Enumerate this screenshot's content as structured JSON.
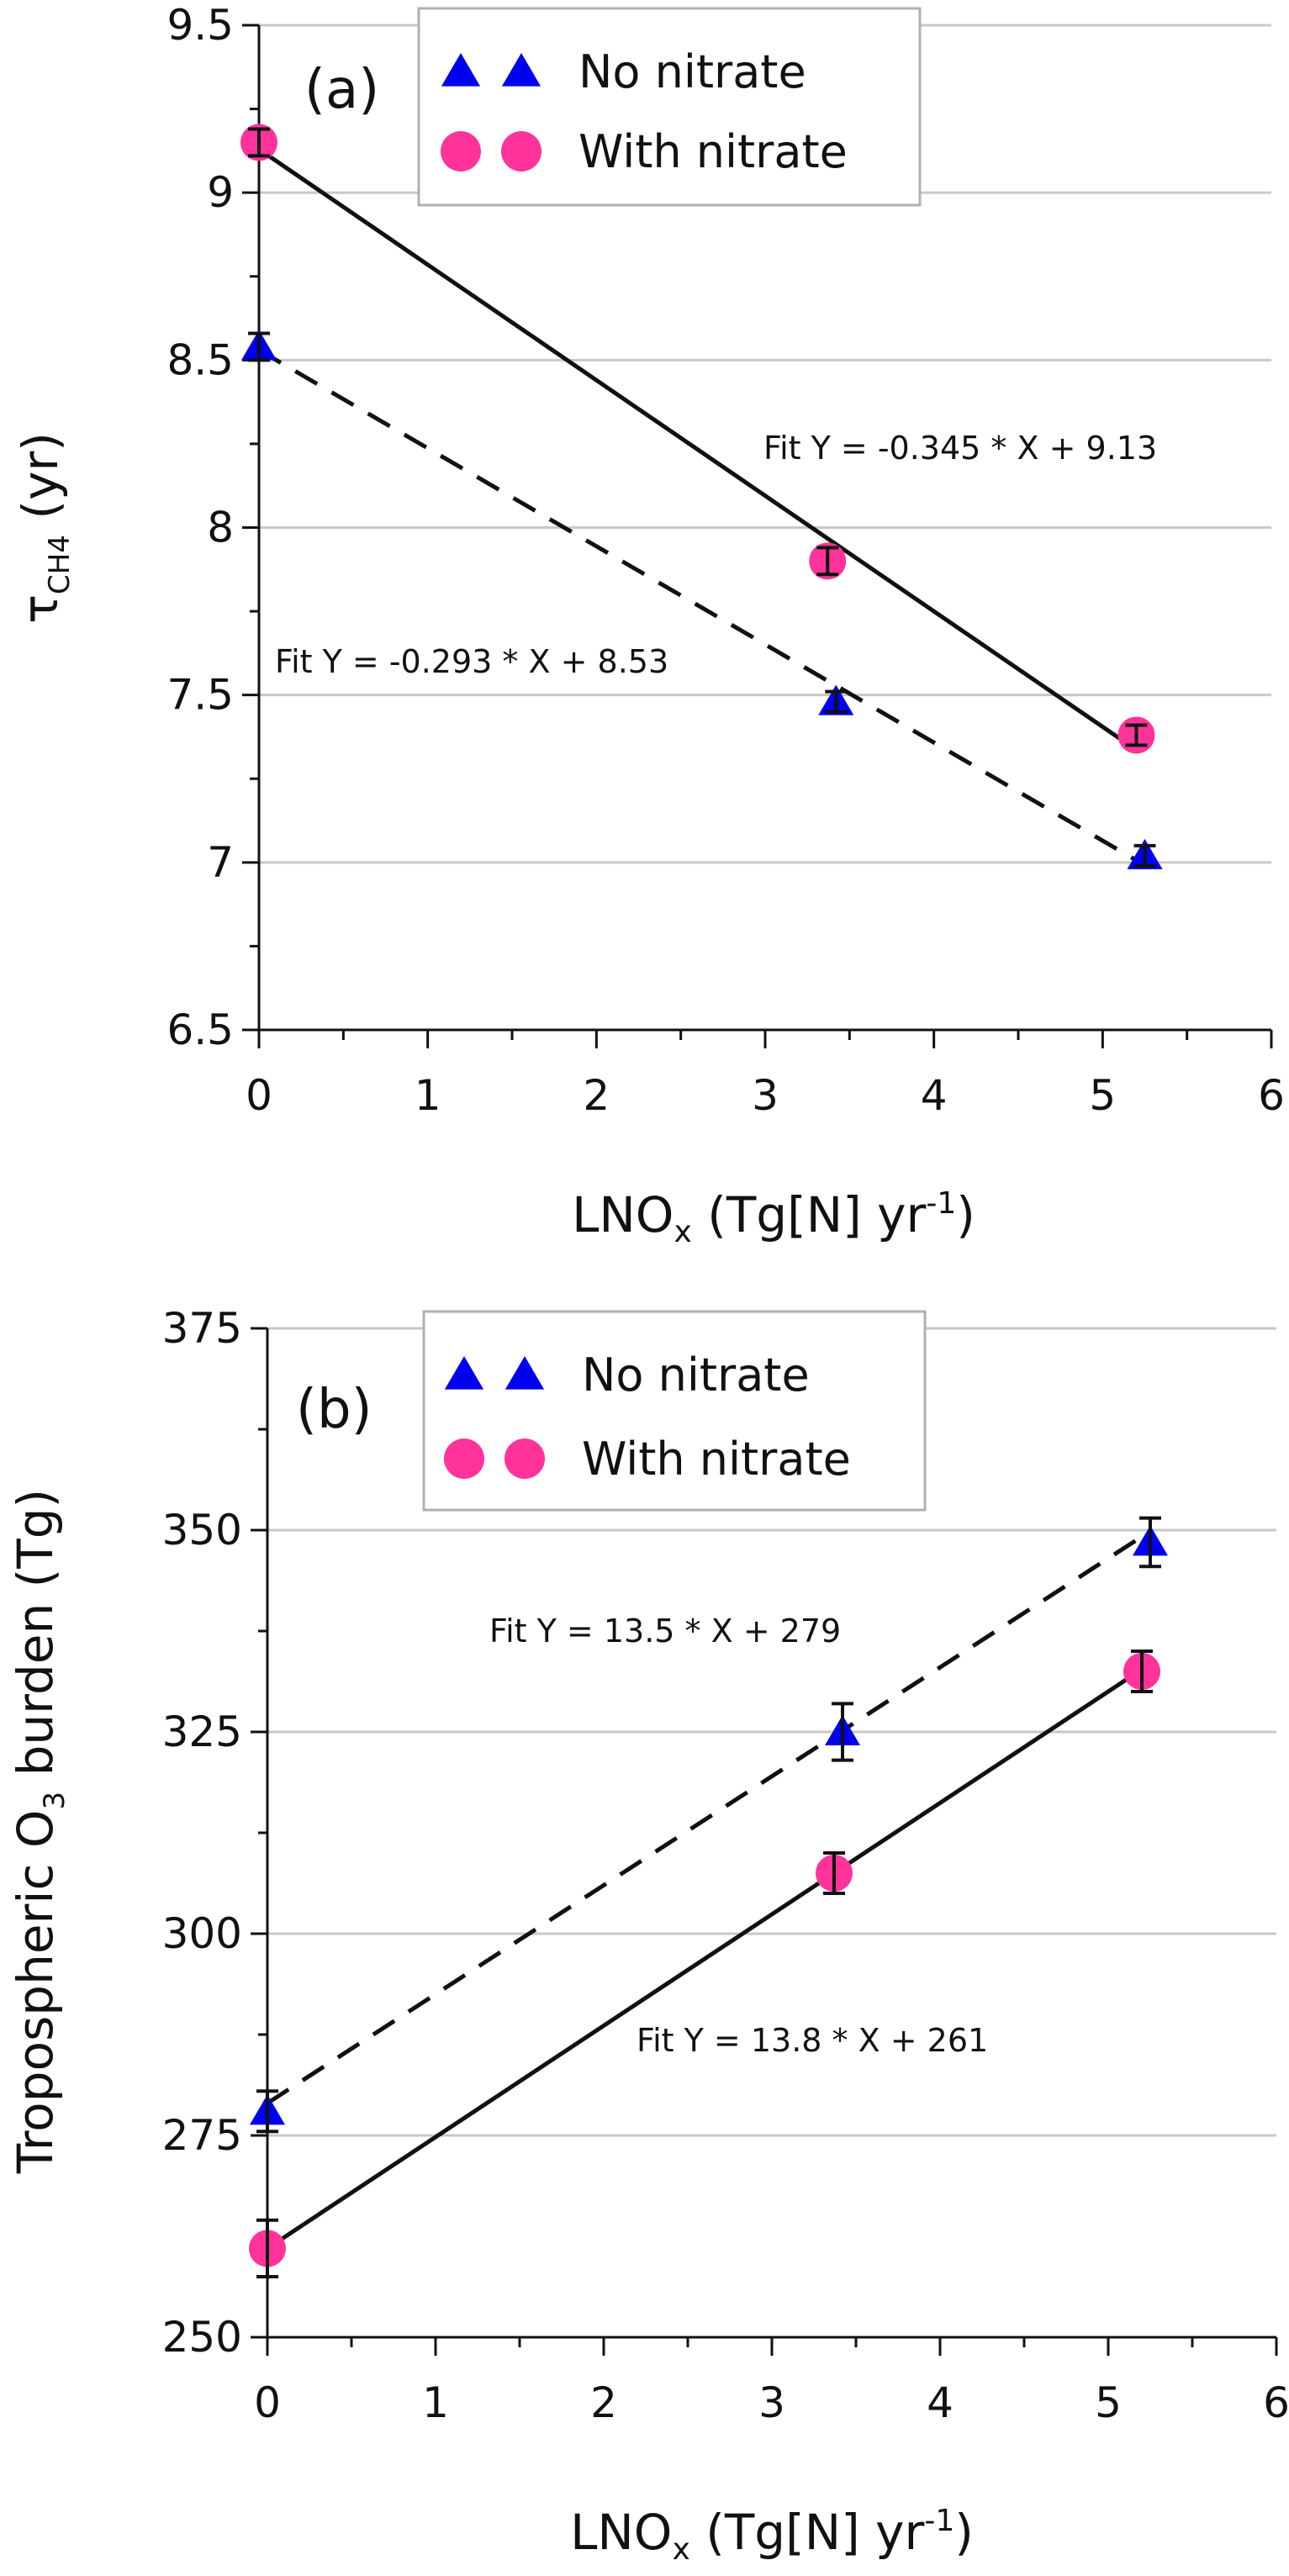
{
  "chart_data": [
    {
      "type": "scatter",
      "panel_label": "(a)",
      "xlabel": {
        "main": "LNO",
        "sub": "x",
        "rest": " (Tg[N] yr",
        "sup": "-1",
        "end": ")"
      },
      "ylabel": {
        "main": "τ",
        "sub": "CH4",
        "rest": " (yr)"
      },
      "xlim": [
        0,
        6
      ],
      "ylim": [
        6.5,
        9.5
      ],
      "x_ticks": [
        0,
        1,
        2,
        3,
        4,
        5,
        6
      ],
      "x_tick_labels": [
        "0",
        "1",
        "2",
        "3",
        "4",
        "5",
        "6"
      ],
      "y_ticks": [
        6.5,
        7,
        7.5,
        8,
        8.5,
        9,
        9.5
      ],
      "y_tick_labels": [
        "6.5",
        "7",
        "7.5",
        "8",
        "8.5",
        "9",
        "9.5"
      ],
      "grid": "horizontal",
      "legend_position": "top-center",
      "series": [
        {
          "name": "No nitrate",
          "marker": "triangle",
          "color": "#0000ee",
          "line": "dashed",
          "x": [
            0,
            3.42,
            5.25
          ],
          "y": [
            8.54,
            7.48,
            7.02
          ],
          "err": [
            0.04,
            0.03,
            0.03
          ],
          "fit": {
            "slope": -0.293,
            "intercept": 8.53,
            "label": "Fit Y = -0.293 * X + 8.53"
          }
        },
        {
          "name": "With nitrate",
          "marker": "circle",
          "color": "#ff3399",
          "line": "solid",
          "x": [
            0,
            3.37,
            5.2
          ],
          "y": [
            9.15,
            7.9,
            7.38
          ],
          "err": [
            0.04,
            0.04,
            0.03
          ],
          "fit": {
            "slope": -0.345,
            "intercept": 9.13,
            "label": "Fit Y = -0.345 * X + 9.13"
          }
        }
      ]
    },
    {
      "type": "scatter",
      "panel_label": "(b)",
      "xlabel": {
        "main": "LNO",
        "sub": "x",
        "rest": " (Tg[N] yr",
        "sup": "-1",
        "end": ")"
      },
      "ylabel": {
        "main": "Tropospheric O",
        "sub": "3",
        "rest": " burden (Tg)"
      },
      "xlim": [
        0,
        6
      ],
      "ylim": [
        250,
        375
      ],
      "x_ticks": [
        0,
        1,
        2,
        3,
        4,
        5,
        6
      ],
      "x_tick_labels": [
        "0",
        "1",
        "2",
        "3",
        "4",
        "5",
        "6"
      ],
      "y_ticks": [
        250,
        275,
        300,
        325,
        350,
        375
      ],
      "y_tick_labels": [
        "250",
        "275",
        "300",
        "325",
        "350",
        "375"
      ],
      "grid": "horizontal",
      "legend_position": "top-center",
      "series": [
        {
          "name": "No nitrate",
          "marker": "triangle",
          "color": "#0000ee",
          "line": "dashed",
          "x": [
            0,
            3.42,
            5.25
          ],
          "y": [
            278,
            325,
            348.5
          ],
          "err": [
            2.5,
            3.5,
            3
          ],
          "fit": {
            "slope": 13.5,
            "intercept": 279,
            "label": "Fit Y = 13.5 * X + 279"
          }
        },
        {
          "name": "With nitrate",
          "marker": "circle",
          "color": "#ff3399",
          "line": "solid",
          "x": [
            0,
            3.37,
            5.2
          ],
          "y": [
            261,
            307.5,
            332.5
          ],
          "err": [
            3.5,
            2.5,
            2.5
          ],
          "fit": {
            "slope": 13.8,
            "intercept": 261,
            "label": "Fit Y = 13.8 * X + 261"
          }
        }
      ]
    }
  ]
}
